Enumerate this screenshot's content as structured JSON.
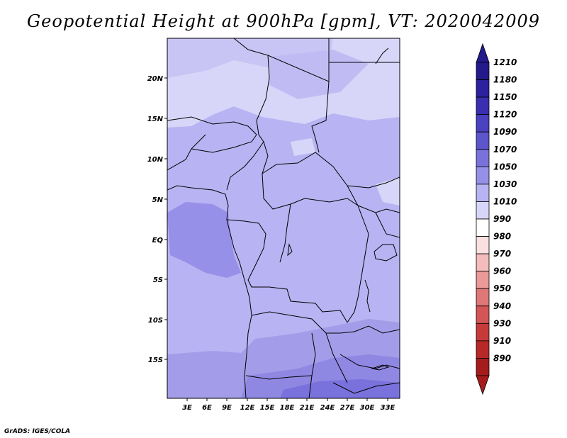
{
  "title": "Geopotential Height at 900hPa [gpm], VT: 2020042009",
  "credit": "GrADS: IGES/COLA",
  "map": {
    "lat_labels": [
      "20N",
      "15N",
      "10N",
      "5N",
      "EQ",
      "5S",
      "10S",
      "15S"
    ],
    "lon_labels": [
      "3E",
      "6E",
      "9E",
      "12E",
      "15E",
      "18E",
      "21E",
      "24E",
      "27E",
      "30E",
      "33E"
    ]
  },
  "colorbar": {
    "levels": [
      {
        "label": "1210",
        "color": "#231a8c"
      },
      {
        "label": "1180",
        "color": "#2c219e"
      },
      {
        "label": "1150",
        "color": "#3a2fb0"
      },
      {
        "label": "1120",
        "color": "#4a41c0"
      },
      {
        "label": "1090",
        "color": "#5d55cc"
      },
      {
        "label": "1070",
        "color": "#7a72dc"
      },
      {
        "label": "1050",
        "color": "#9690e8"
      },
      {
        "label": "1030",
        "color": "#b8b3f2"
      },
      {
        "label": "1010",
        "color": "#d8d6f8"
      },
      {
        "label": "990",
        "color": "#ffffff"
      },
      {
        "label": "980",
        "color": "#fbe0e0"
      },
      {
        "label": "970",
        "color": "#f4bcbc"
      },
      {
        "label": "960",
        "color": "#eb9999"
      },
      {
        "label": "950",
        "color": "#e07777"
      },
      {
        "label": "940",
        "color": "#d45555"
      },
      {
        "label": "930",
        "color": "#c83a3a"
      },
      {
        "label": "910",
        "color": "#b82828"
      },
      {
        "label": "890",
        "color": "#a61c1c"
      }
    ],
    "top_arrow_color": "#231a8c",
    "bottom_arrow_color": "#a61c1c"
  }
}
